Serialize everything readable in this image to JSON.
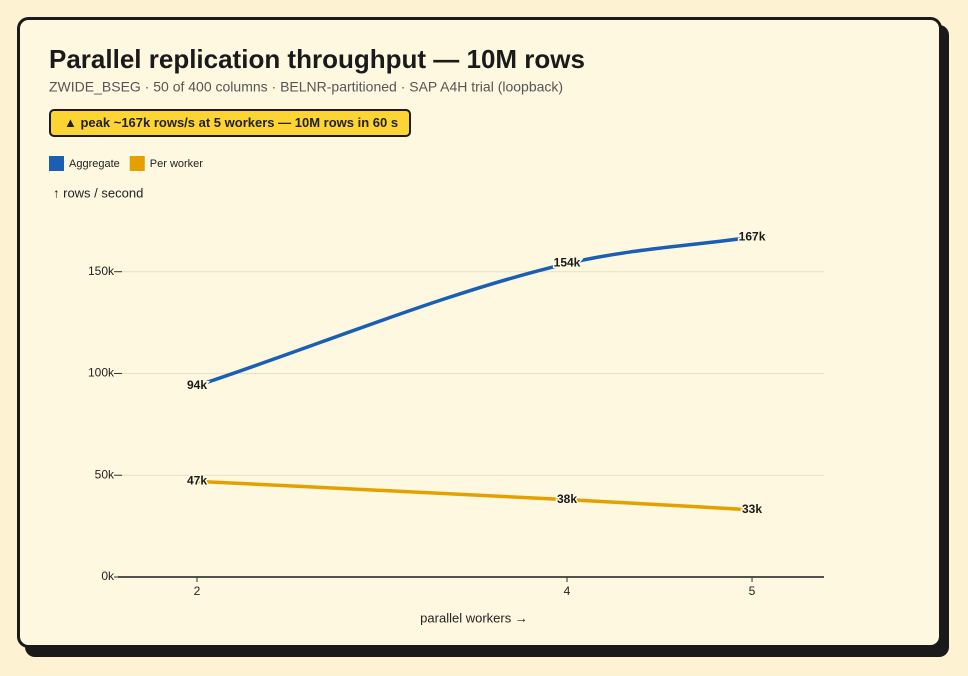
{
  "chart_data": {
    "type": "line",
    "title": "Parallel replication throughput — 10M rows",
    "subtitle": "ZWIDE_BSEG · 50 of 400 columns · BELNR-partitioned · SAP A4H trial (loopback)",
    "annotation": "▲ peak ~167k rows/s at 5 workers — 10M rows in 60 s",
    "y_label": "↑ rows / second",
    "x_label": "parallel workers →",
    "x": [
      2,
      4,
      5
    ],
    "xlim": [
      1.573,
      5.389
    ],
    "xticks": [
      2,
      4,
      5
    ],
    "ylim": [
      0,
      170000
    ],
    "yticks": [
      {
        "value": 0,
        "label": "0k"
      },
      {
        "value": 50000,
        "label": "50k"
      },
      {
        "value": 100000,
        "label": "100k"
      },
      {
        "value": 150000,
        "label": "150k"
      }
    ],
    "grid": true,
    "legend": "top-left",
    "series": [
      {
        "name": "Aggregate",
        "color": "#1a5fb4",
        "values": [
          94000,
          154000,
          167000
        ],
        "value_labels": [
          "94k",
          "154k",
          "167k"
        ]
      },
      {
        "name": "Per worker",
        "color": "#e5a000",
        "values": [
          47000,
          38000,
          33000
        ],
        "value_labels": [
          "47k",
          "38k",
          "33k"
        ]
      }
    ]
  }
}
